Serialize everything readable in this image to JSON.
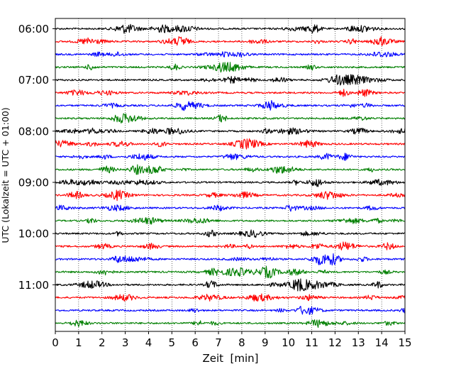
{
  "chart_data": {
    "type": "line",
    "title": "",
    "xlabel": "Zeit  [min]",
    "ylabel": "UTC (Lokalzeit = UTC + 01:00)",
    "xlim": [
      0,
      15
    ],
    "x_ticks": [
      0,
      1,
      2,
      3,
      4,
      5,
      6,
      7,
      8,
      9,
      10,
      11,
      12,
      13,
      14,
      15
    ],
    "x_tick_labels": [
      "0",
      "1",
      "2",
      "3",
      "4",
      "5",
      "6",
      "7",
      "8",
      "9",
      "10",
      "11",
      "12",
      "13",
      "14",
      "15"
    ],
    "y_tick_labels": [
      "06:00",
      "07:00",
      "08:00",
      "09:00",
      "10:00",
      "11:00"
    ],
    "grid": "vertical dotted",
    "trace_minutes": 15,
    "trace_color_cycle": [
      "#000000",
      "#ff0000",
      "#0000ff",
      "#007f00"
    ],
    "traces": [
      {
        "start": "06:00",
        "color": "#000000"
      },
      {
        "start": "06:15",
        "color": "#ff0000"
      },
      {
        "start": "06:30",
        "color": "#0000ff"
      },
      {
        "start": "06:45",
        "color": "#007f00"
      },
      {
        "start": "07:00",
        "color": "#000000"
      },
      {
        "start": "07:15",
        "color": "#ff0000"
      },
      {
        "start": "07:30",
        "color": "#0000ff"
      },
      {
        "start": "07:45",
        "color": "#007f00"
      },
      {
        "start": "08:00",
        "color": "#000000"
      },
      {
        "start": "08:15",
        "color": "#ff0000"
      },
      {
        "start": "08:30",
        "color": "#0000ff"
      },
      {
        "start": "08:45",
        "color": "#007f00"
      },
      {
        "start": "09:00",
        "color": "#000000"
      },
      {
        "start": "09:15",
        "color": "#ff0000"
      },
      {
        "start": "09:30",
        "color": "#0000ff"
      },
      {
        "start": "09:45",
        "color": "#007f00"
      },
      {
        "start": "10:00",
        "color": "#000000"
      },
      {
        "start": "10:15",
        "color": "#ff0000"
      },
      {
        "start": "10:30",
        "color": "#0000ff"
      },
      {
        "start": "10:45",
        "color": "#007f00"
      },
      {
        "start": "11:00",
        "color": "#000000"
      },
      {
        "start": "11:15",
        "color": "#ff0000"
      },
      {
        "start": "11:30",
        "color": "#0000ff"
      },
      {
        "start": "11:45",
        "color": "#007f00"
      }
    ]
  }
}
